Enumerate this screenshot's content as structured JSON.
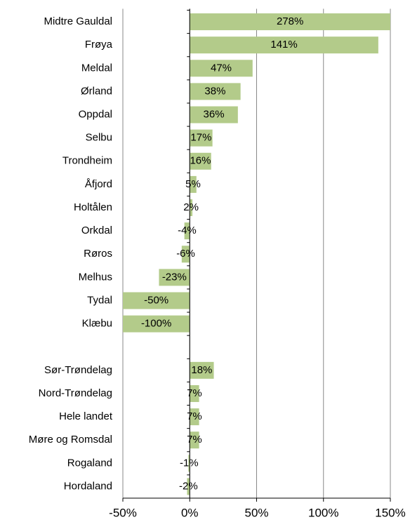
{
  "chart_data": {
    "type": "barh",
    "categories": [
      "Midtre Gauldal",
      "Frøya",
      "Meldal",
      "Ørland",
      "Oppdal",
      "Selbu",
      "Trondheim",
      "Åfjord",
      "Holtålen",
      "Orkdal",
      "Røros",
      "Melhus",
      "Tydal",
      "Klæbu",
      null,
      "Sør-Trøndelag",
      "Nord-Trøndelag",
      "Hele landet",
      "Møre og Romsdal",
      "Rogaland",
      "Hordaland"
    ],
    "values": [
      278,
      141,
      47,
      38,
      36,
      17,
      16,
      5,
      2,
      -4,
      -6,
      -23,
      -50,
      -100,
      null,
      18,
      7,
      7,
      7,
      -1,
      -2
    ],
    "value_labels": [
      "278%",
      "141%",
      "47%",
      "38%",
      "36%",
      "17%",
      "16%",
      "5%",
      "2%",
      "-4%",
      "-6%",
      "-23%",
      "-50%",
      "-100%",
      null,
      "18%",
      "7%",
      "7%",
      "7%",
      "-1%",
      "-2%"
    ],
    "color": "#b3cb8a",
    "xlim": [
      -50,
      150
    ],
    "xticks": [
      {
        "value": -50,
        "label": "-50%"
      },
      {
        "value": 0,
        "label": "0%"
      },
      {
        "value": 50,
        "label": "50%"
      },
      {
        "value": 100,
        "label": "100%"
      },
      {
        "value": 150,
        "label": "150%"
      }
    ],
    "grid": true
  }
}
